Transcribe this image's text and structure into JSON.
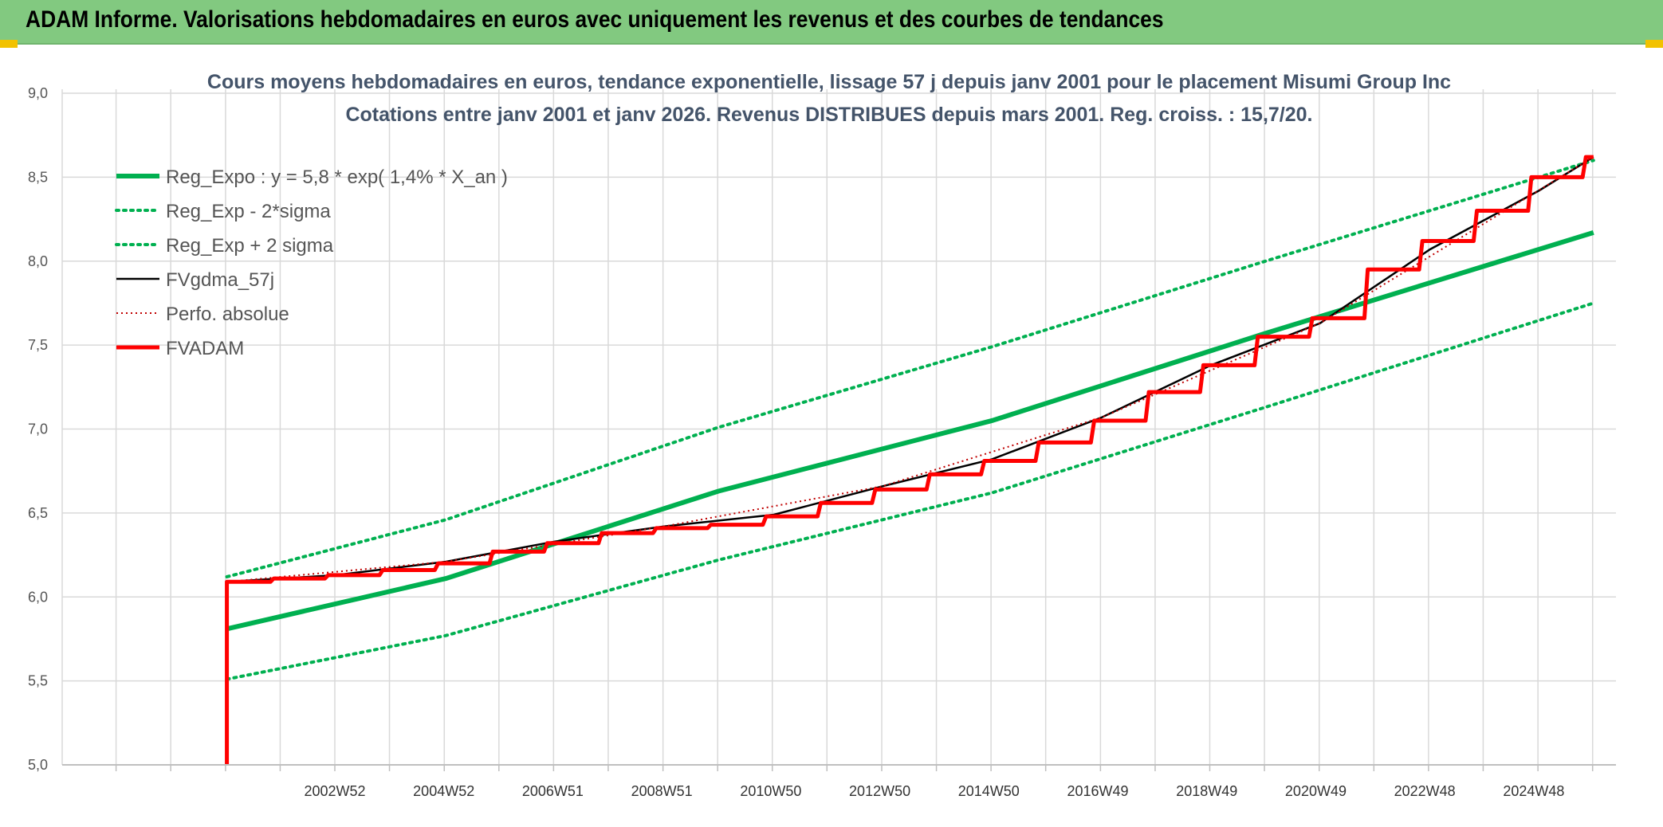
{
  "header": {
    "title": "ADAM Informe. Valorisations hebdomadaires en euros avec uniquement les revenus et des courbes de tendances"
  },
  "colors": {
    "header_bg": "#82c980",
    "trend_green": "#00b050",
    "fvadam_red": "#ff0000",
    "fvgdma_black": "#000000",
    "corner_accent": "#f2c200"
  },
  "chart_data": {
    "type": "line",
    "title": "Cours moyens hebdomadaires en euros, tendance exponentielle, lissage 57 j depuis janv 2001 pour le placement Misumi Group Inc",
    "subtitle": "Cotations entre janv 2001 et janv 2026. Revenus DISTRIBUES depuis mars 2001. Reg. croiss. : 15,7/20.",
    "xlabel": "",
    "ylabel": "",
    "x_axis": {
      "type": "date",
      "range": [
        "1998-01-01",
        "2026-06-01"
      ]
    },
    "ylim": [
      5.0,
      9.0
    ],
    "y_ticks": [
      "5,0",
      "5,5",
      "6,0",
      "6,5",
      "7,0",
      "7,5",
      "8,0",
      "8,5",
      "9,0"
    ],
    "x_ticks": [
      {
        "label": "2002W52",
        "date": "2002-12-27"
      },
      {
        "label": "2004W52",
        "date": "2004-12-24"
      },
      {
        "label": "2006W51",
        "date": "2006-12-22"
      },
      {
        "label": "2008W51",
        "date": "2008-12-19"
      },
      {
        "label": "2010W50",
        "date": "2010-12-17"
      },
      {
        "label": "2012W50",
        "date": "2012-12-14"
      },
      {
        "label": "2014W50",
        "date": "2014-12-12"
      },
      {
        "label": "2016W49",
        "date": "2016-12-09"
      },
      {
        "label": "2018W49",
        "date": "2018-12-07"
      },
      {
        "label": "2020W49",
        "date": "2020-12-04"
      },
      {
        "label": "2022W48",
        "date": "2022-12-02"
      },
      {
        "label": "2024W48",
        "date": "2024-11-29"
      }
    ],
    "grid": true,
    "legend_position": "top-left",
    "series": [
      {
        "name": "Reg_Expo : y = 5,8 * exp( 1,4% *  X_an )",
        "style": "solid-thick",
        "color": "#00b050",
        "points": [
          [
            "2001-01-05",
            5.81
          ],
          [
            "2005-01-07",
            6.11
          ],
          [
            "2010-01-01",
            6.63
          ],
          [
            "2015-01-02",
            7.05
          ],
          [
            "2020-01-03",
            7.57
          ],
          [
            "2026-01-02",
            8.17
          ]
        ]
      },
      {
        "name": "Reg_Exp - 2*sigma",
        "style": "dotted",
        "color": "#00b050",
        "points": [
          [
            "2001-01-05",
            5.51
          ],
          [
            "2005-01-07",
            5.77
          ],
          [
            "2010-01-01",
            6.22
          ],
          [
            "2015-01-02",
            6.62
          ],
          [
            "2020-01-03",
            7.13
          ],
          [
            "2026-01-02",
            7.75
          ]
        ]
      },
      {
        "name": "Reg_Exp + 2 sigma",
        "style": "dotted",
        "color": "#00b050",
        "points": [
          [
            "2001-01-05",
            6.12
          ],
          [
            "2005-01-07",
            6.46
          ],
          [
            "2010-01-01",
            7.01
          ],
          [
            "2015-01-02",
            7.49
          ],
          [
            "2020-01-03",
            8.0
          ],
          [
            "2026-01-02",
            8.6
          ]
        ]
      },
      {
        "name": "FVgdma_57j",
        "style": "solid",
        "color": "#000000",
        "points": [
          [
            "2001-01-05",
            6.09
          ],
          [
            "2003-01-03",
            6.13
          ],
          [
            "2005-01-07",
            6.21
          ],
          [
            "2007-01-05",
            6.33
          ],
          [
            "2009-01-02",
            6.42
          ],
          [
            "2011-01-07",
            6.49
          ],
          [
            "2013-01-04",
            6.66
          ],
          [
            "2015-01-02",
            6.82
          ],
          [
            "2017-01-06",
            7.07
          ],
          [
            "2019-01-04",
            7.38
          ],
          [
            "2021-01-01",
            7.63
          ],
          [
            "2023-01-06",
            8.07
          ],
          [
            "2025-01-03",
            8.42
          ],
          [
            "2026-01-02",
            8.62
          ]
        ]
      },
      {
        "name": "Perfo. absolue",
        "style": "dotted-thin",
        "color": "#c00000",
        "points": [
          [
            "2001-01-05",
            6.09
          ],
          [
            "2005-01-07",
            6.21
          ],
          [
            "2009-01-02",
            6.42
          ],
          [
            "2013-01-04",
            6.66
          ],
          [
            "2017-01-06",
            7.07
          ],
          [
            "2021-01-01",
            7.63
          ],
          [
            "2026-01-02",
            8.62
          ]
        ]
      },
      {
        "name": "FVADAM",
        "style": "step-thick",
        "color": "#ff0000",
        "points": [
          [
            "2001-01-05",
            5.0
          ],
          [
            "2001-01-05",
            6.09
          ],
          [
            "2002-01-04",
            6.11
          ],
          [
            "2003-01-03",
            6.13
          ],
          [
            "2004-01-02",
            6.16
          ],
          [
            "2005-01-07",
            6.2
          ],
          [
            "2006-01-06",
            6.27
          ],
          [
            "2007-01-05",
            6.32
          ],
          [
            "2008-01-04",
            6.38
          ],
          [
            "2009-01-02",
            6.41
          ],
          [
            "2010-01-01",
            6.43
          ],
          [
            "2011-01-07",
            6.48
          ],
          [
            "2012-01-06",
            6.56
          ],
          [
            "2013-01-04",
            6.64
          ],
          [
            "2014-01-03",
            6.73
          ],
          [
            "2015-01-02",
            6.81
          ],
          [
            "2016-01-01",
            6.92
          ],
          [
            "2017-01-06",
            7.05
          ],
          [
            "2018-01-05",
            7.22
          ],
          [
            "2019-01-04",
            7.38
          ],
          [
            "2020-01-03",
            7.55
          ],
          [
            "2021-01-01",
            7.66
          ],
          [
            "2022-01-07",
            7.95
          ],
          [
            "2023-01-06",
            8.12
          ],
          [
            "2024-01-05",
            8.3
          ],
          [
            "2025-01-03",
            8.5
          ],
          [
            "2026-01-02",
            8.62
          ]
        ]
      }
    ]
  }
}
